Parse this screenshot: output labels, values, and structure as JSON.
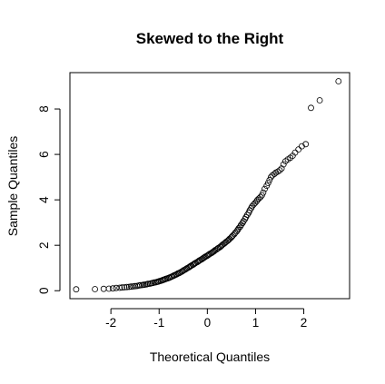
{
  "chart_data": {
    "type": "scatter",
    "title": "Skewed to the Right",
    "xlabel": "Theoretical Quantiles",
    "ylabel": "Sample Quantiles",
    "xlim": [
      -2.85,
      2.95
    ],
    "ylim": [
      -0.35,
      9.6
    ],
    "xticks": [
      -2,
      -1,
      0,
      1,
      2
    ],
    "yticks": [
      0,
      2,
      4,
      6,
      8
    ],
    "grid": false,
    "marker": "open-circle",
    "points": [
      [
        -2.72,
        0.06
      ],
      [
        -2.33,
        0.07
      ],
      [
        -2.15,
        0.08
      ],
      [
        -2.04,
        0.09
      ],
      [
        -1.96,
        0.1
      ],
      [
        -1.89,
        0.12
      ],
      [
        -1.82,
        0.13
      ],
      [
        -1.77,
        0.14
      ],
      [
        -1.72,
        0.15
      ],
      [
        -1.67,
        0.16
      ],
      [
        -1.62,
        0.17
      ],
      [
        -1.58,
        0.18
      ],
      [
        -1.54,
        0.19
      ],
      [
        -1.5,
        0.2
      ],
      [
        -1.46,
        0.21
      ],
      [
        -1.42,
        0.23
      ],
      [
        -1.39,
        0.24
      ],
      [
        -1.35,
        0.25
      ],
      [
        -1.32,
        0.26
      ],
      [
        -1.29,
        0.27
      ],
      [
        -1.26,
        0.28
      ],
      [
        -1.23,
        0.3
      ],
      [
        -1.19,
        0.31
      ],
      [
        -1.16,
        0.33
      ],
      [
        -1.13,
        0.34
      ],
      [
        -1.1,
        0.36
      ],
      [
        -1.07,
        0.37
      ],
      [
        -1.04,
        0.39
      ],
      [
        -1.02,
        0.4
      ],
      [
        -0.99,
        0.42
      ],
      [
        -0.96,
        0.44
      ],
      [
        -0.93,
        0.46
      ],
      [
        -0.91,
        0.48
      ],
      [
        -0.88,
        0.5
      ],
      [
        -0.86,
        0.52
      ],
      [
        -0.83,
        0.54
      ],
      [
        -0.8,
        0.56
      ],
      [
        -0.78,
        0.58
      ],
      [
        -0.75,
        0.61
      ],
      [
        -0.73,
        0.63
      ],
      [
        -0.7,
        0.66
      ],
      [
        -0.68,
        0.68
      ],
      [
        -0.65,
        0.71
      ],
      [
        -0.63,
        0.73
      ],
      [
        -0.61,
        0.76
      ],
      [
        -0.58,
        0.78
      ],
      [
        -0.56,
        0.81
      ],
      [
        -0.53,
        0.84
      ],
      [
        -0.51,
        0.87
      ],
      [
        -0.49,
        0.9
      ],
      [
        -0.46,
        0.93
      ],
      [
        -0.44,
        0.96
      ],
      [
        -0.42,
        0.99
      ],
      [
        -0.39,
        1.02
      ],
      [
        -0.37,
        1.05
      ],
      [
        -0.35,
        1.08
      ],
      [
        -0.33,
        1.11
      ],
      [
        -0.3,
        1.14
      ],
      [
        -0.28,
        1.17
      ],
      [
        -0.26,
        1.2
      ],
      [
        -0.24,
        1.23
      ],
      [
        -0.21,
        1.26
      ],
      [
        -0.19,
        1.29
      ],
      [
        -0.17,
        1.32
      ],
      [
        -0.15,
        1.35
      ],
      [
        -0.12,
        1.38
      ],
      [
        -0.1,
        1.41
      ],
      [
        -0.08,
        1.44
      ],
      [
        -0.06,
        1.47
      ],
      [
        -0.04,
        1.5
      ],
      [
        -0.01,
        1.53
      ],
      [
        0.01,
        1.56
      ],
      [
        0.03,
        1.59
      ],
      [
        0.05,
        1.62
      ],
      [
        0.08,
        1.65
      ],
      [
        0.1,
        1.68
      ],
      [
        0.12,
        1.71
      ],
      [
        0.14,
        1.74
      ],
      [
        0.16,
        1.78
      ],
      [
        0.19,
        1.81
      ],
      [
        0.21,
        1.85
      ],
      [
        0.23,
        1.88
      ],
      [
        0.26,
        1.92
      ],
      [
        0.28,
        1.95
      ],
      [
        0.3,
        1.99
      ],
      [
        0.32,
        2.03
      ],
      [
        0.35,
        2.07
      ],
      [
        0.37,
        2.11
      ],
      [
        0.39,
        2.15
      ],
      [
        0.42,
        2.19
      ],
      [
        0.44,
        2.23
      ],
      [
        0.46,
        2.28
      ],
      [
        0.49,
        2.33
      ],
      [
        0.51,
        2.38
      ],
      [
        0.53,
        2.43
      ],
      [
        0.56,
        2.49
      ],
      [
        0.58,
        2.55
      ],
      [
        0.61,
        2.61
      ],
      [
        0.63,
        2.68
      ],
      [
        0.65,
        2.75
      ],
      [
        0.68,
        2.82
      ],
      [
        0.7,
        2.9
      ],
      [
        0.73,
        2.98
      ],
      [
        0.75,
        3.06
      ],
      [
        0.78,
        3.15
      ],
      [
        0.8,
        3.24
      ],
      [
        0.83,
        3.34
      ],
      [
        0.86,
        3.44
      ],
      [
        0.88,
        3.54
      ],
      [
        0.91,
        3.64
      ],
      [
        0.93,
        3.72
      ],
      [
        0.96,
        3.79
      ],
      [
        0.99,
        3.86
      ],
      [
        1.02,
        3.93
      ],
      [
        1.04,
        4.0
      ],
      [
        1.07,
        4.06
      ],
      [
        1.1,
        4.12
      ],
      [
        1.13,
        4.2
      ],
      [
        1.16,
        4.32
      ],
      [
        1.19,
        4.48
      ],
      [
        1.23,
        4.62
      ],
      [
        1.26,
        4.74
      ],
      [
        1.29,
        4.87
      ],
      [
        1.32,
        5.0
      ],
      [
        1.35,
        5.08
      ],
      [
        1.39,
        5.14
      ],
      [
        1.42,
        5.2
      ],
      [
        1.46,
        5.24
      ],
      [
        1.5,
        5.3
      ],
      [
        1.54,
        5.38
      ],
      [
        1.58,
        5.56
      ],
      [
        1.62,
        5.7
      ],
      [
        1.67,
        5.78
      ],
      [
        1.72,
        5.85
      ],
      [
        1.77,
        5.94
      ],
      [
        1.82,
        6.08
      ],
      [
        1.89,
        6.22
      ],
      [
        1.96,
        6.36
      ],
      [
        2.04,
        6.45
      ],
      [
        2.15,
        8.05
      ],
      [
        2.33,
        8.38
      ],
      [
        2.72,
        9.22
      ]
    ]
  }
}
